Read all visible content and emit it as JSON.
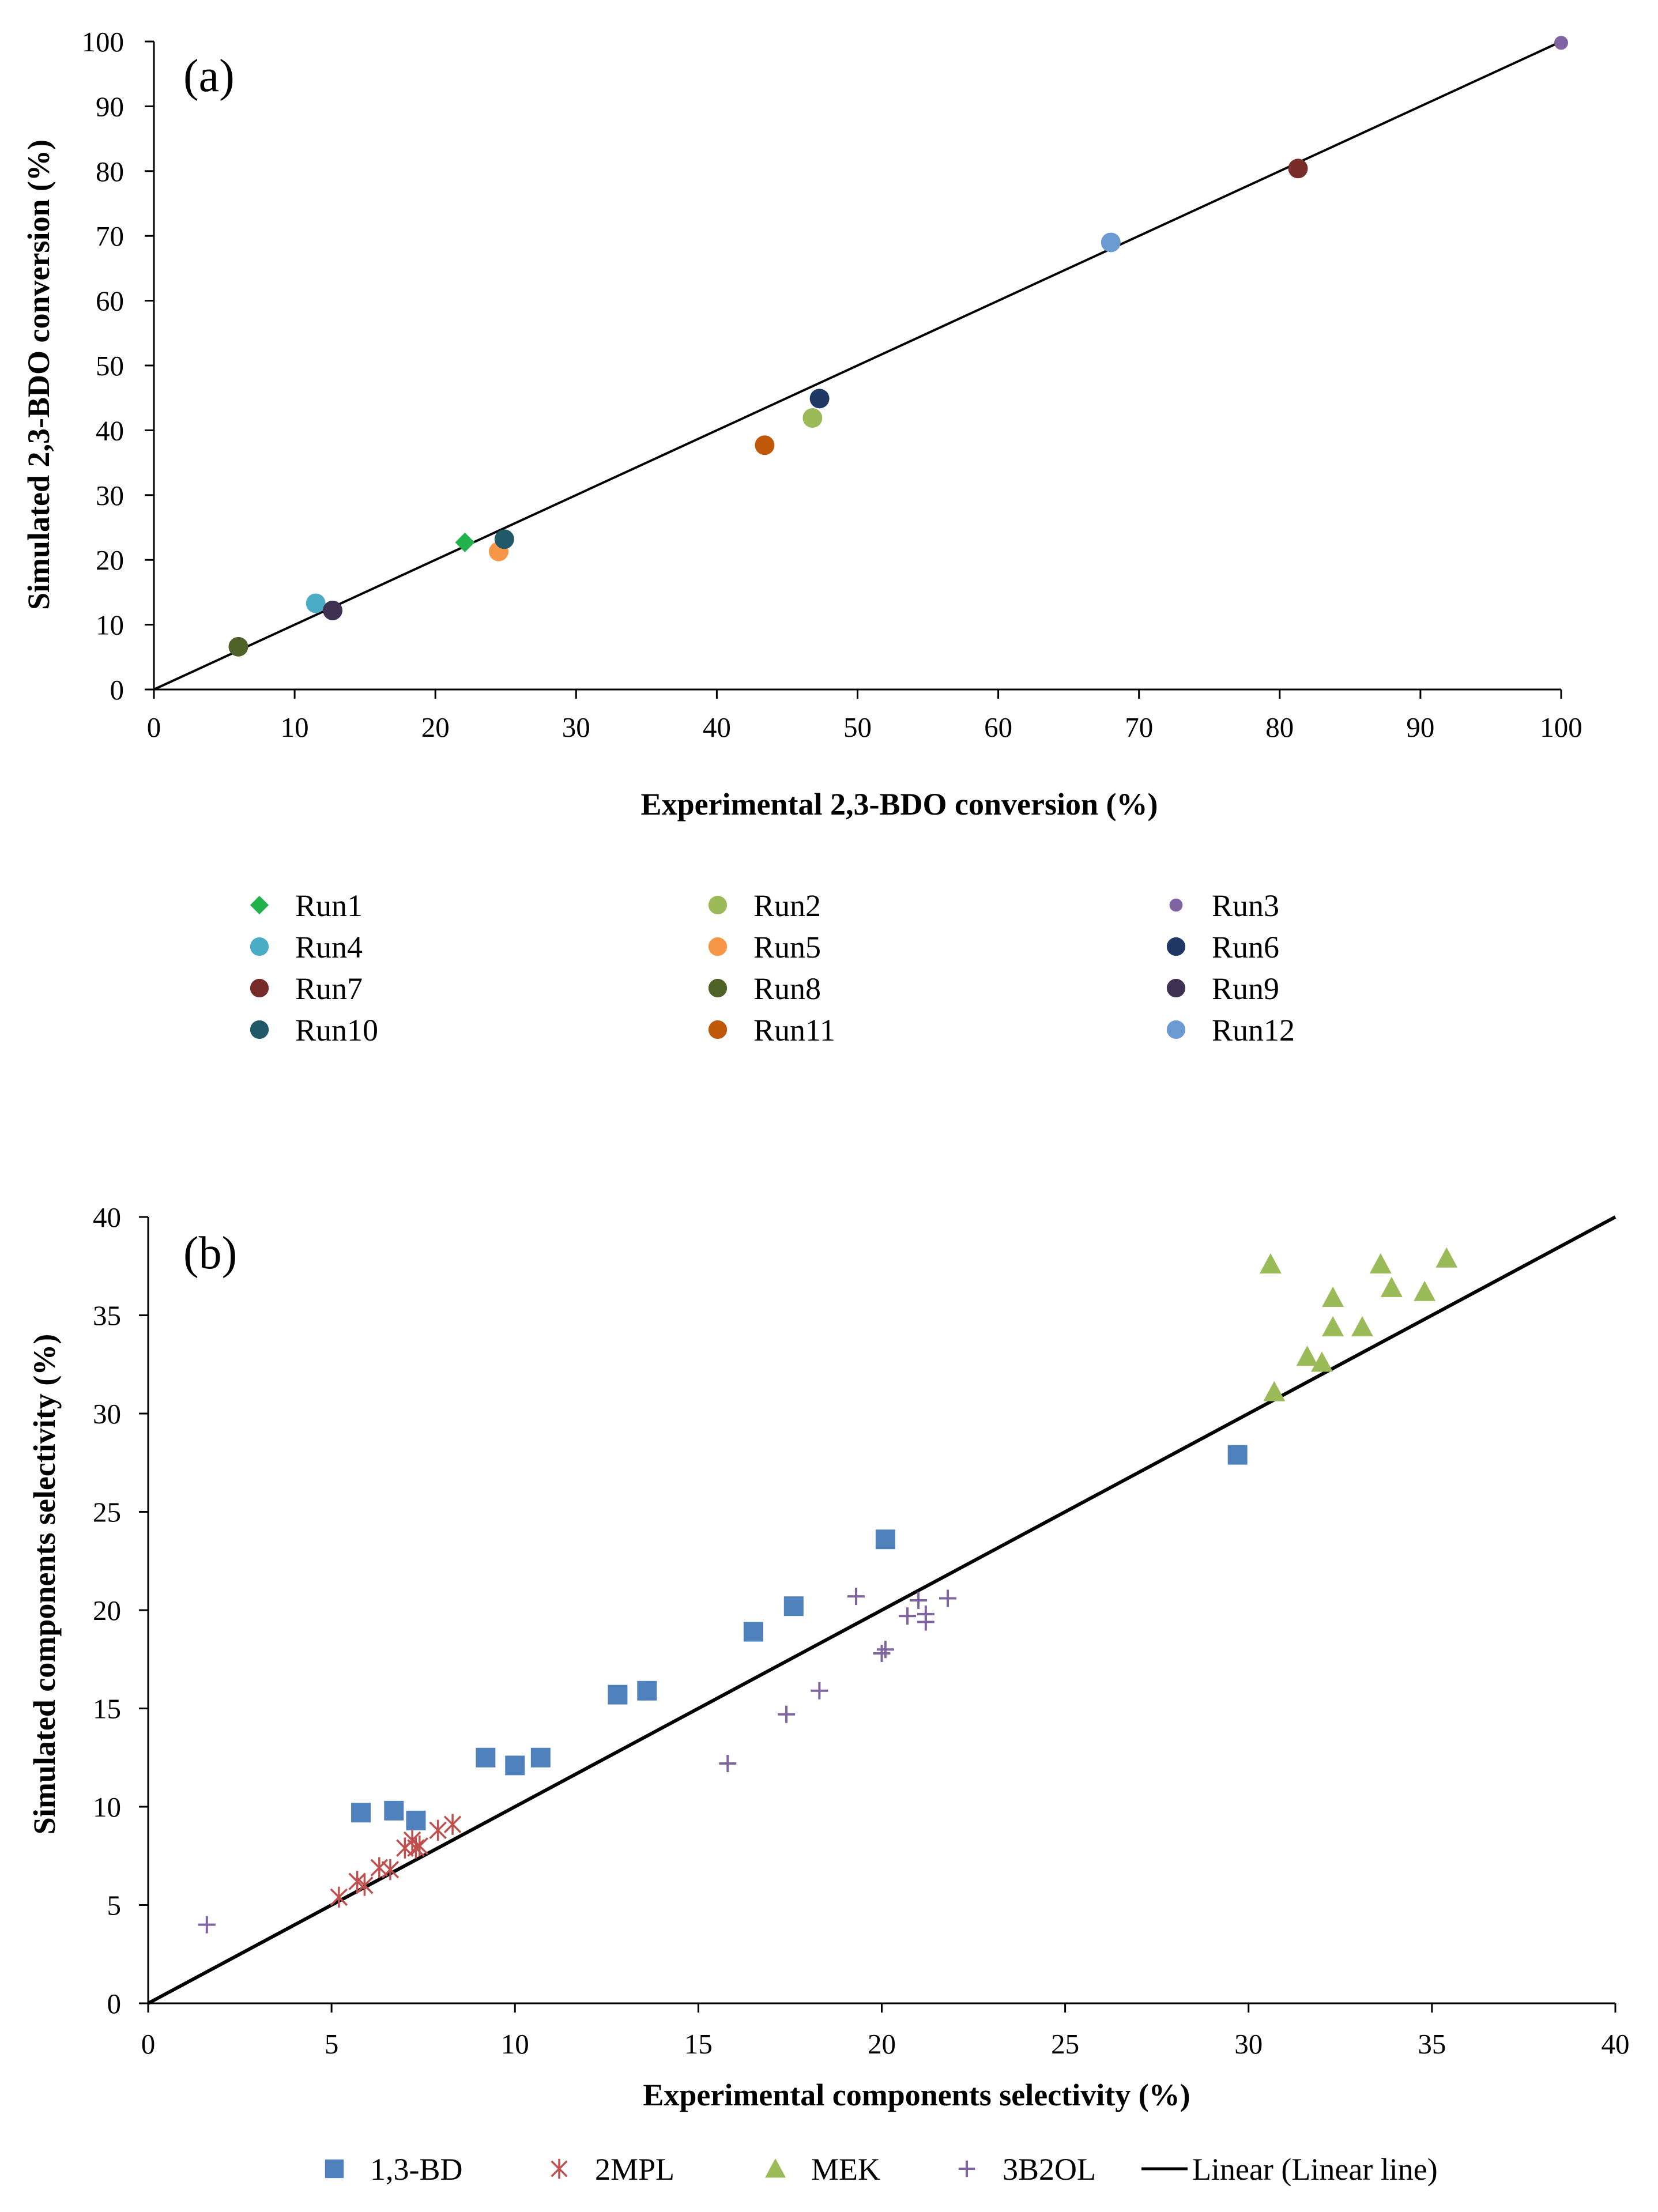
{
  "chart_data": [
    {
      "type": "scatter",
      "panel_label": "(a)",
      "xlabel": "Experimental 2,3-BDO conversion (%)",
      "ylabel": "Simulated 2,3-BDO conversion (%)",
      "xlim": [
        0,
        100
      ],
      "ylim": [
        0,
        100
      ],
      "xticks": [
        0,
        10,
        20,
        30,
        40,
        50,
        60,
        70,
        80,
        90,
        100
      ],
      "yticks": [
        0,
        10,
        20,
        30,
        40,
        50,
        60,
        70,
        80,
        90,
        100
      ],
      "parity_line": {
        "from": [
          0,
          0
        ],
        "to": [
          100,
          100
        ]
      },
      "legend_position": "bottom",
      "series": [
        {
          "name": "Run1",
          "marker": "diamond",
          "color": "#21b24b",
          "x": 22.1,
          "y": 22.7
        },
        {
          "name": "Run2",
          "marker": "circle",
          "color": "#9bbb59",
          "x": 46.8,
          "y": 41.9
        },
        {
          "name": "Run3",
          "marker": "circle-small",
          "color": "#8064a2",
          "x": 100.0,
          "y": 99.8
        },
        {
          "name": "Run4",
          "marker": "circle",
          "color": "#4bacc6",
          "x": 11.5,
          "y": 13.3
        },
        {
          "name": "Run5",
          "marker": "circle",
          "color": "#f79646",
          "x": 24.5,
          "y": 21.3
        },
        {
          "name": "Run6",
          "marker": "circle",
          "color": "#1f3864",
          "x": 47.3,
          "y": 44.9
        },
        {
          "name": "Run7",
          "marker": "circle",
          "color": "#772c2a",
          "x": 81.3,
          "y": 80.4
        },
        {
          "name": "Run8",
          "marker": "circle",
          "color": "#4f6228",
          "x": 6.0,
          "y": 6.6
        },
        {
          "name": "Run9",
          "marker": "circle",
          "color": "#3f3151",
          "x": 12.7,
          "y": 12.2
        },
        {
          "name": "Run10",
          "marker": "circle",
          "color": "#215968",
          "x": 24.9,
          "y": 23.2
        },
        {
          "name": "Run11",
          "marker": "circle",
          "color": "#c0580a",
          "x": 43.4,
          "y": 37.7
        },
        {
          "name": "Run12",
          "marker": "circle",
          "color": "#6c9bd2",
          "x": 68.0,
          "y": 69.0
        }
      ]
    },
    {
      "type": "scatter",
      "panel_label": "(b)",
      "xlabel": "Experimental components selectivity  (%)",
      "ylabel": "Simulated components selectivity (%)",
      "xlim": [
        0,
        40
      ],
      "ylim": [
        0,
        40
      ],
      "xticks": [
        0,
        5,
        10,
        15,
        20,
        25,
        30,
        35,
        40
      ],
      "yticks": [
        0,
        5,
        10,
        15,
        20,
        25,
        30,
        35,
        40
      ],
      "legend_position": "bottom",
      "series": [
        {
          "name": "1,3-BD",
          "marker": "square",
          "color": "#4f81bd",
          "points": [
            [
              5.8,
              9.7
            ],
            [
              6.7,
              9.8
            ],
            [
              7.3,
              9.3
            ],
            [
              9.2,
              12.5
            ],
            [
              10.0,
              12.1
            ],
            [
              10.7,
              12.5
            ],
            [
              12.8,
              15.7
            ],
            [
              13.6,
              15.9
            ],
            [
              16.5,
              18.9
            ],
            [
              17.6,
              20.2
            ],
            [
              20.1,
              23.6
            ],
            [
              29.7,
              27.9
            ]
          ]
        },
        {
          "name": "2MPL",
          "marker": "star-x",
          "color": "#c0504d",
          "points": [
            [
              5.2,
              5.4
            ],
            [
              5.7,
              6.2
            ],
            [
              5.9,
              6.0
            ],
            [
              6.3,
              6.9
            ],
            [
              6.6,
              6.8
            ],
            [
              7.0,
              7.9
            ],
            [
              7.2,
              8.3
            ],
            [
              7.3,
              7.9
            ],
            [
              7.4,
              8.0
            ],
            [
              7.9,
              8.8
            ],
            [
              8.3,
              9.1
            ]
          ]
        },
        {
          "name": "MEK",
          "marker": "triangle",
          "color": "#9bbb59",
          "points": [
            [
              30.6,
              37.6
            ],
            [
              30.7,
              31.1
            ],
            [
              31.6,
              32.9
            ],
            [
              32.0,
              32.6
            ],
            [
              32.3,
              35.9
            ],
            [
              32.3,
              34.4
            ],
            [
              33.1,
              34.4
            ],
            [
              33.6,
              37.6
            ],
            [
              33.9,
              36.4
            ],
            [
              34.8,
              36.2
            ],
            [
              35.4,
              37.9
            ]
          ]
        },
        {
          "name": "3B2OL",
          "marker": "plus",
          "color": "#8064a2",
          "points": [
            [
              1.6,
              4.0
            ],
            [
              15.8,
              12.2
            ],
            [
              17.4,
              14.7
            ],
            [
              18.3,
              15.9
            ],
            [
              19.3,
              20.7
            ],
            [
              20.0,
              17.8
            ],
            [
              20.1,
              18.0
            ],
            [
              20.7,
              19.7
            ],
            [
              21.0,
              20.5
            ],
            [
              21.2,
              19.8
            ],
            [
              21.2,
              19.4
            ],
            [
              21.8,
              20.6
            ]
          ]
        },
        {
          "name": "Linear (Linear line)",
          "marker": "line",
          "color": "#000000",
          "line": {
            "from": [
              0,
              0
            ],
            "to": [
              40,
              40
            ]
          }
        }
      ]
    }
  ]
}
